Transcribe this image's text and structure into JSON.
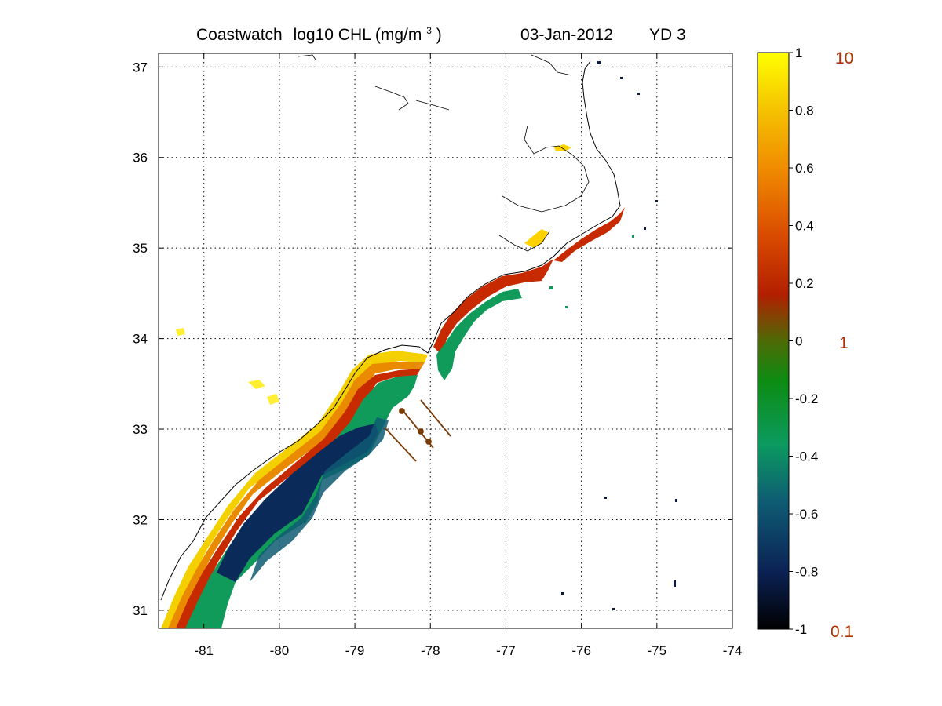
{
  "title": {
    "product": "Coastwatch",
    "variable": "log10  CHL (mg/m",
    "unit_superscript": "3",
    "unit_close": ")",
    "date": "03-Jan-2012",
    "yearday": "YD 3"
  },
  "map": {
    "lon_range": [
      -81.6,
      -74
    ],
    "lat_range": [
      30.8,
      37.15
    ],
    "x_ticks": [
      "-81",
      "-80",
      "-79",
      "-78",
      "-77",
      "-76",
      "-75",
      "-74"
    ],
    "y_ticks": [
      "37",
      "36",
      "35",
      "34",
      "33",
      "32",
      "31"
    ],
    "grid": "dotted",
    "coastline_color": "#000000",
    "glider_track_color": "#7a3a05"
  },
  "colorbar": {
    "ticks": [
      "1",
      "0.8",
      "0.6",
      "0.4",
      "0.2",
      "0",
      "-0.2",
      "-0.4",
      "-0.6",
      "-0.8",
      "-1"
    ],
    "range": [
      -1,
      1
    ],
    "right_labels": [
      "10",
      "1",
      "0.1"
    ],
    "right_label_color": "#b03000",
    "colors": [
      "#000000",
      "#0b2255",
      "#0e5b73",
      "#0b9a60",
      "#0c8c12",
      "#b11f00",
      "#d94a00",
      "#f08c00",
      "#f5c200",
      "#ffff00"
    ]
  }
}
